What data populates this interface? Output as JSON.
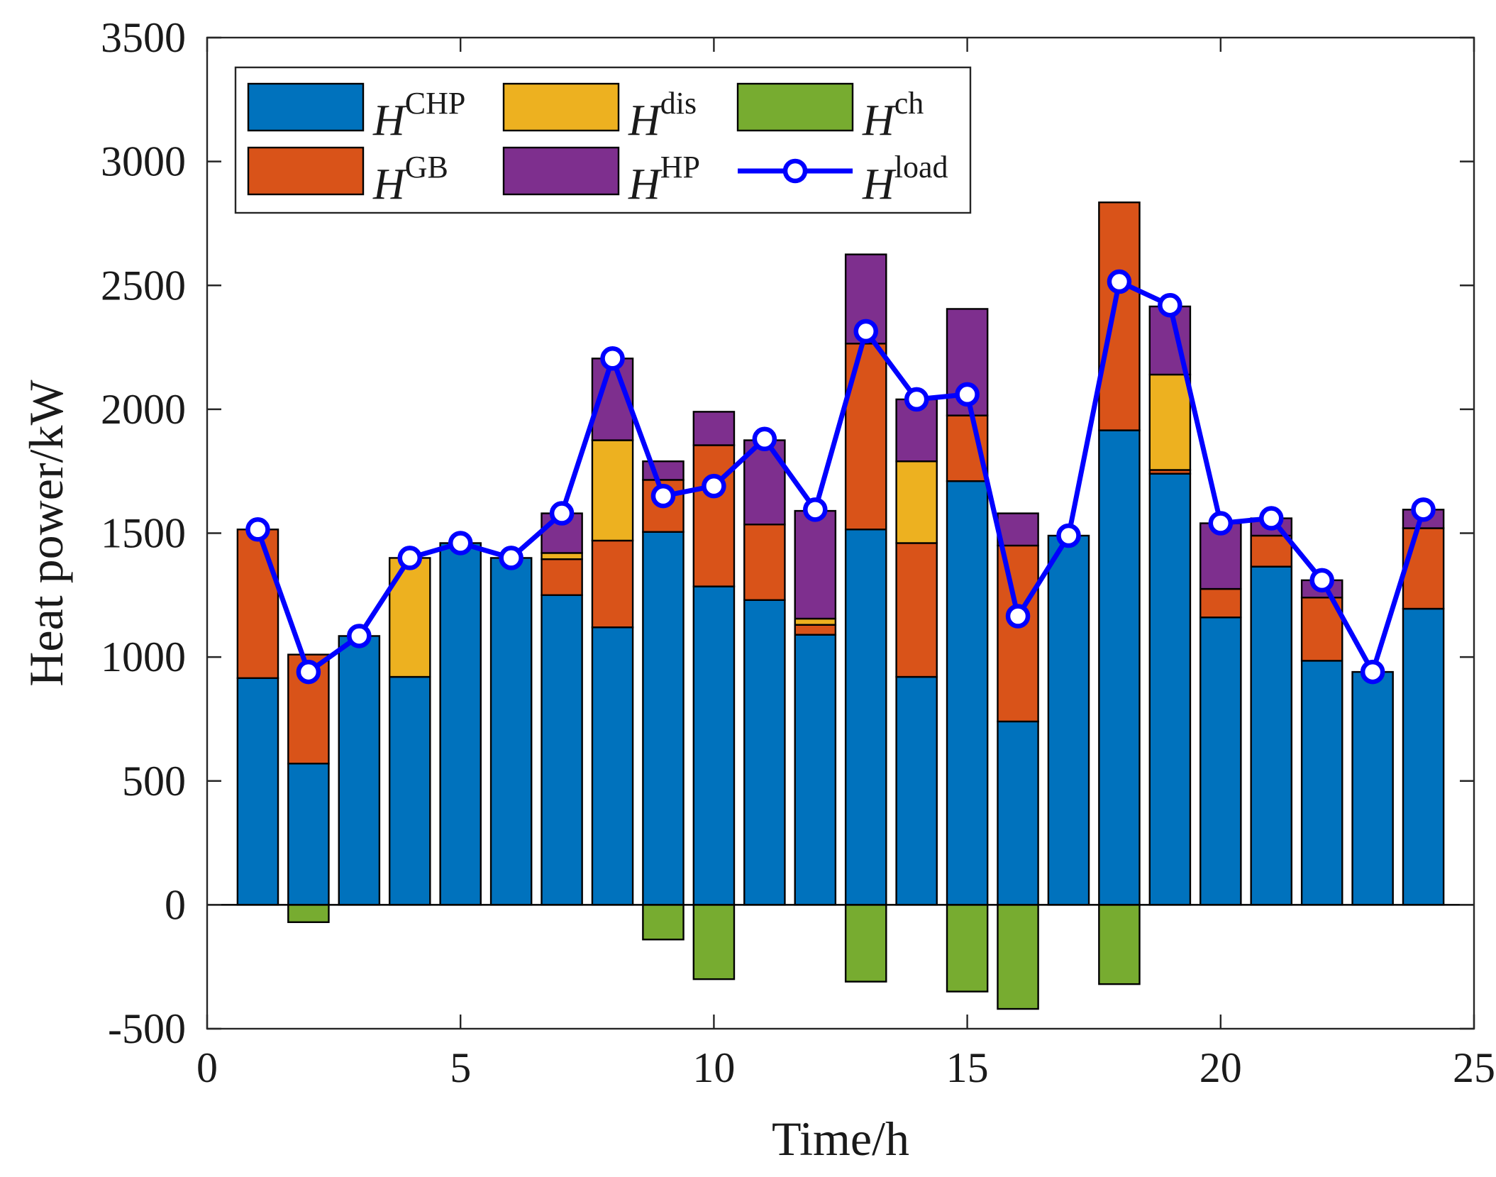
{
  "chart_data": {
    "type": "bar",
    "stacked": true,
    "title": "",
    "xlabel": "Time/h",
    "ylabel": "Heat power/kW",
    "xlim": [
      0,
      25
    ],
    "ylim": [
      -500,
      3500
    ],
    "xticks": [
      0,
      5,
      10,
      15,
      20,
      25
    ],
    "yticks": [
      -500,
      0,
      500,
      1000,
      1500,
      2000,
      2500,
      3000,
      3500
    ],
    "legend_position": "top-left",
    "categories": [
      1,
      2,
      3,
      4,
      5,
      6,
      7,
      8,
      9,
      10,
      11,
      12,
      13,
      14,
      15,
      16,
      17,
      18,
      19,
      20,
      21,
      22,
      23,
      24
    ],
    "series": [
      {
        "key": "chp",
        "name": "H",
        "sup": "CHP",
        "color": "#0072BD",
        "values": [
          915,
          570,
          1085,
          920,
          1460,
          1400,
          1250,
          1120,
          1505,
          1285,
          1230,
          1090,
          1515,
          920,
          1710,
          740,
          1490,
          1915,
          1740,
          1160,
          1365,
          985,
          940,
          1195
        ]
      },
      {
        "key": "gb",
        "name": "H",
        "sup": "GB",
        "color": "#D95319",
        "values": [
          600,
          440,
          0,
          0,
          0,
          0,
          145,
          350,
          210,
          570,
          305,
          40,
          750,
          540,
          265,
          710,
          0,
          920,
          15,
          115,
          125,
          255,
          0,
          325
        ]
      },
      {
        "key": "dis",
        "name": "H",
        "sup": "dis",
        "color": "#EDB120",
        "values": [
          0,
          0,
          0,
          480,
          0,
          0,
          25,
          405,
          0,
          0,
          0,
          25,
          0,
          330,
          0,
          0,
          0,
          0,
          385,
          0,
          0,
          0,
          0,
          0
        ]
      },
      {
        "key": "hp",
        "name": "H",
        "sup": "HP",
        "color": "#7E2F8E",
        "values": [
          0,
          0,
          0,
          0,
          0,
          0,
          160,
          330,
          75,
          135,
          340,
          435,
          360,
          250,
          430,
          130,
          0,
          0,
          275,
          265,
          70,
          70,
          0,
          75
        ]
      },
      {
        "key": "ch",
        "name": "H",
        "sup": "ch",
        "color": "#77AC30",
        "negative": true,
        "values": [
          0,
          -70,
          0,
          0,
          0,
          0,
          0,
          0,
          -140,
          -300,
          0,
          0,
          -310,
          0,
          -350,
          -420,
          0,
          -320,
          0,
          0,
          0,
          0,
          0,
          0
        ]
      }
    ],
    "line": {
      "key": "load",
      "name": "H",
      "sup": "load",
      "color": "#0000FF",
      "values": [
        1515,
        940,
        1085,
        1400,
        1460,
        1400,
        1580,
        2205,
        1650,
        1690,
        1880,
        1595,
        2315,
        2040,
        2060,
        1165,
        1490,
        2515,
        2420,
        1540,
        1560,
        1310,
        940,
        1595
      ]
    },
    "legend": [
      {
        "key": "chp",
        "name": "H",
        "sup": "CHP",
        "kind": "bar"
      },
      {
        "key": "dis",
        "name": "H",
        "sup": "dis",
        "kind": "bar"
      },
      {
        "key": "ch",
        "name": "H",
        "sup": "ch",
        "kind": "bar"
      },
      {
        "key": "gb",
        "name": "H",
        "sup": "GB",
        "kind": "bar"
      },
      {
        "key": "hp",
        "name": "H",
        "sup": "HP",
        "kind": "bar"
      },
      {
        "key": "load",
        "name": "H",
        "sup": "load",
        "kind": "line"
      }
    ]
  }
}
